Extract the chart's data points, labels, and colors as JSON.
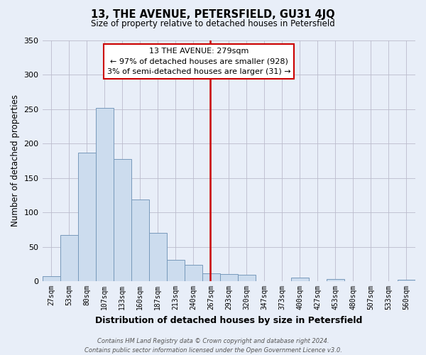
{
  "title": "13, THE AVENUE, PETERSFIELD, GU31 4JQ",
  "subtitle": "Size of property relative to detached houses in Petersfield",
  "xlabel": "Distribution of detached houses by size in Petersfield",
  "ylabel": "Number of detached properties",
  "bar_labels": [
    "27sqm",
    "53sqm",
    "80sqm",
    "107sqm",
    "133sqm",
    "160sqm",
    "187sqm",
    "213sqm",
    "240sqm",
    "267sqm",
    "293sqm",
    "320sqm",
    "347sqm",
    "373sqm",
    "400sqm",
    "427sqm",
    "453sqm",
    "480sqm",
    "507sqm",
    "533sqm",
    "560sqm"
  ],
  "bar_values": [
    7,
    67,
    187,
    252,
    177,
    119,
    70,
    31,
    24,
    11,
    10,
    9,
    0,
    0,
    5,
    0,
    3,
    0,
    0,
    0,
    2
  ],
  "bar_color": "#ccdcee",
  "bar_edge_color": "#7799bb",
  "marker_color": "#cc0000",
  "ylim": [
    0,
    350
  ],
  "yticks": [
    0,
    50,
    100,
    150,
    200,
    250,
    300,
    350
  ],
  "annotation_title": "13 THE AVENUE: 279sqm",
  "annotation_line1": "← 97% of detached houses are smaller (928)",
  "annotation_line2": "3% of semi-detached houses are larger (31) →",
  "annotation_box_color": "#ffffff",
  "annotation_box_edge": "#cc0000",
  "footer_line1": "Contains HM Land Registry data © Crown copyright and database right 2024.",
  "footer_line2": "Contains public sector information licensed under the Open Government Licence v3.0.",
  "bg_color": "#e8eef8",
  "plot_bg_color": "#e8eef8",
  "grid_color": "#bbbbcc",
  "property_sqm": 279,
  "bin_width": 27
}
